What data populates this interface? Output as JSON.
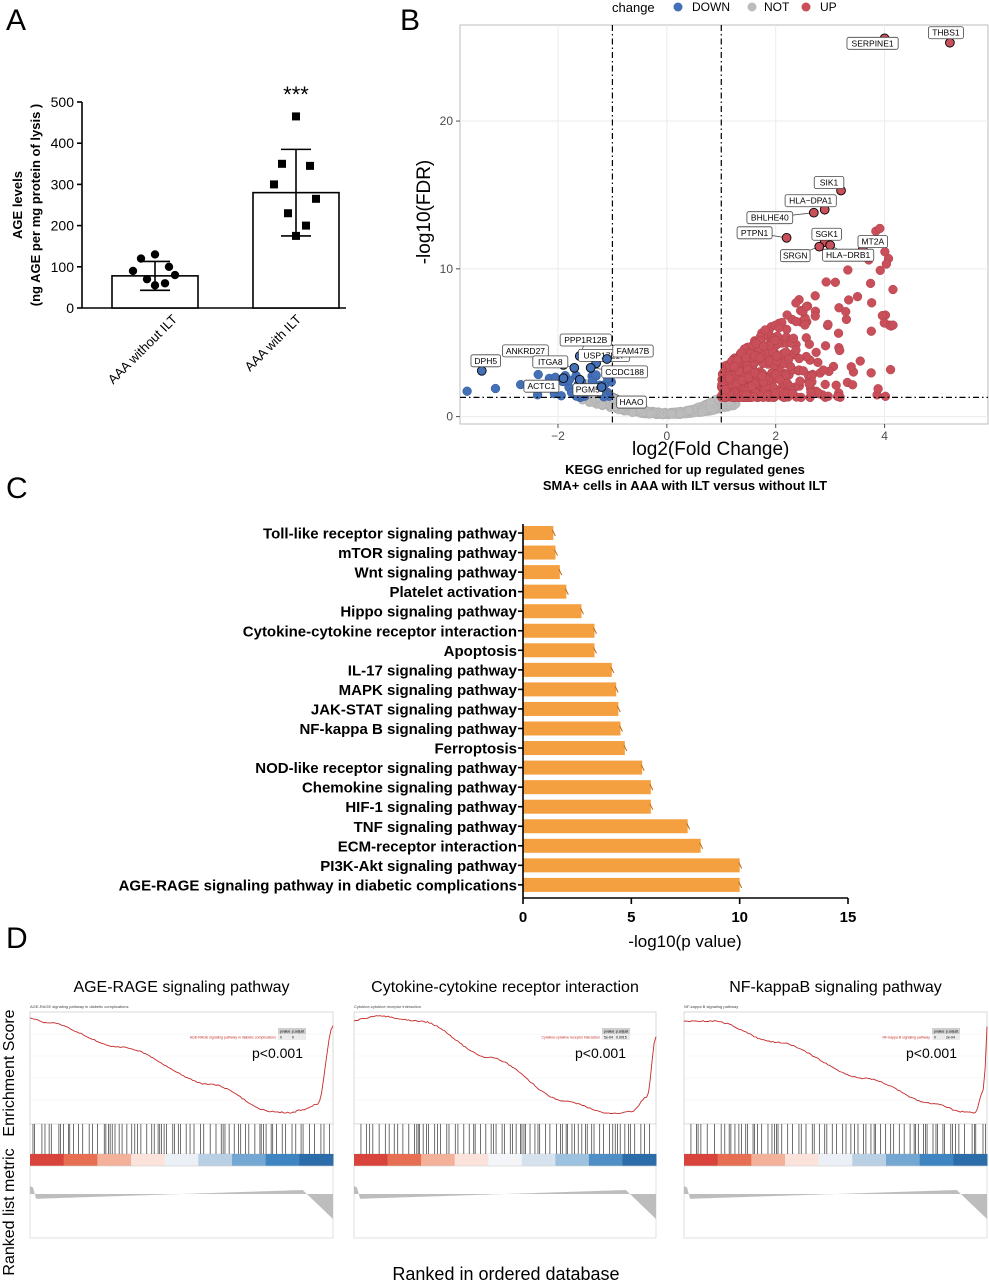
{
  "panels": {
    "a": {
      "letter": "A"
    },
    "b": {
      "letter": "B"
    },
    "c": {
      "letter": "C"
    },
    "d": {
      "letter": "D"
    }
  },
  "chart_data": [
    {
      "id": "A",
      "type": "bar",
      "title": "",
      "ylabel_line1": "AGE levels",
      "ylabel_line2": "(ng AGE per mg protein of lysis )",
      "ylim": [
        0,
        500
      ],
      "yticks": [
        0,
        100,
        200,
        300,
        400,
        500
      ],
      "categories": [
        "AAA without ILT",
        "AAA with ILT"
      ],
      "values": [
        78,
        280
      ],
      "error": [
        35,
        105
      ],
      "points": [
        [
          130,
          120,
          100,
          90,
          80,
          70,
          60,
          55
        ],
        [
          465,
          350,
          345,
          300,
          265,
          230,
          200,
          175
        ]
      ],
      "significance": "***"
    },
    {
      "id": "B",
      "type": "scatter",
      "xlabel": "log2(Fold Change)",
      "ylabel": "-log10(FDR)",
      "xlim": [
        -3.8,
        5.9
      ],
      "ylim": [
        -0.5,
        26.5
      ],
      "xticks": [
        -2,
        0,
        2,
        4
      ],
      "yticks": [
        0,
        10,
        20
      ],
      "vlines": [
        -1,
        1
      ],
      "hline": 1.3,
      "grid": true,
      "legend": {
        "title": "change",
        "position": "top",
        "entries": [
          {
            "name": "DOWN",
            "color": "#4470b8"
          },
          {
            "name": "NOT",
            "color": "#bcbcbc"
          },
          {
            "name": "UP",
            "color": "#c9505a"
          }
        ]
      },
      "labeled_points": [
        {
          "label": "THBS1",
          "x": 5.2,
          "y": 25.3,
          "group": "UP"
        },
        {
          "label": "SERPINE1",
          "x": 4.0,
          "y": 25.6,
          "group": "UP"
        },
        {
          "label": "SIK1",
          "x": 3.2,
          "y": 15.3,
          "group": "UP"
        },
        {
          "label": "HLA−DPA1",
          "x": 2.9,
          "y": 14.0,
          "group": "UP"
        },
        {
          "label": "BHLHE40",
          "x": 2.7,
          "y": 13.8,
          "group": "UP"
        },
        {
          "label": "PTPN1",
          "x": 2.2,
          "y": 12.1,
          "group": "UP"
        },
        {
          "label": "SGK1",
          "x": 2.9,
          "y": 11.8,
          "group": "UP"
        },
        {
          "label": "SRGN",
          "x": 2.8,
          "y": 11.5,
          "group": "UP"
        },
        {
          "label": "MT2A",
          "x": 3.6,
          "y": 11.3,
          "group": "UP"
        },
        {
          "label": "HLA−DRB1",
          "x": 3.0,
          "y": 11.6,
          "group": "UP"
        },
        {
          "label": "DPH5",
          "x": -3.4,
          "y": 3.1,
          "group": "DOWN"
        },
        {
          "label": "ANKRD27",
          "x": -1.9,
          "y": 3.5,
          "group": "DOWN"
        },
        {
          "label": "PPP1R12B",
          "x": -1.6,
          "y": 4.1,
          "group": "DOWN"
        },
        {
          "label": "ITGA8",
          "x": -1.7,
          "y": 3.3,
          "group": "DOWN"
        },
        {
          "label": "USP17L17",
          "x": -1.3,
          "y": 3.6,
          "group": "DOWN"
        },
        {
          "label": "FAM47B",
          "x": -1.1,
          "y": 3.9,
          "group": "DOWN"
        },
        {
          "label": "CCDC188",
          "x": -1.4,
          "y": 3.3,
          "group": "DOWN"
        },
        {
          "label": "ACTC1",
          "x": -1.9,
          "y": 2.6,
          "group": "DOWN"
        },
        {
          "label": "PGM5",
          "x": -1.6,
          "y": 2.5,
          "group": "DOWN"
        },
        {
          "label": "HAAO",
          "x": -1.2,
          "y": 2.0,
          "group": "DOWN"
        }
      ]
    },
    {
      "id": "C",
      "type": "bar",
      "orientation": "horizontal",
      "title_line1": "KEGG enriched for up regulated genes",
      "title_line2": "SMA+ cells in AAA with ILT versus without ILT",
      "xlabel": "-log10(p value)",
      "xlim": [
        0,
        15
      ],
      "xticks": [
        0,
        5,
        10,
        15
      ],
      "bar_color": "#f4a041",
      "categories": [
        "Toll-like receptor signaling pathway",
        "mTOR signaling pathway",
        "Wnt signaling pathway",
        "Platelet activation",
        "Hippo signaling pathway",
        "Cytokine-cytokine receptor interaction",
        "Apoptosis",
        "IL-17 signaling pathway",
        "MAPK signaling pathway",
        "JAK-STAT signaling pathway",
        "NF-kappa B signaling pathway",
        "Ferroptosis",
        "NOD-like receptor signaling pathway",
        "Chemokine signaling pathway",
        "HIF-1 signaling pathway",
        "TNF signaling pathway",
        "ECM-receptor interaction",
        "PI3K-Akt signaling pathway",
        "AGE-RAGE signaling pathway in diabetic complications"
      ],
      "values": [
        1.4,
        1.5,
        1.7,
        2.0,
        2.7,
        3.3,
        3.3,
        4.1,
        4.3,
        4.4,
        4.5,
        4.7,
        5.5,
        5.9,
        5.9,
        7.6,
        8.2,
        10.0,
        10.0
      ]
    },
    {
      "id": "D",
      "type": "line",
      "ylabel_top": "Enrichment Score",
      "ylabel_bottom": "Ranked list metric",
      "xlabel": "Ranked in ordered database",
      "plots": [
        {
          "title": "AGE-RAGE signaling pathway",
          "inner_title": "AGE-RAGE signaling pathway in diabetic complications",
          "pvalue": "p<0.001",
          "table_head": [
            "pvalue",
            "p.adjust"
          ],
          "table_row_name": "AGE-RAGE signaling pathway in diabetic complications",
          "table_row": [
            "0",
            "0"
          ]
        },
        {
          "title": "Cytokine-cytokine receptor interaction",
          "inner_title": "Cytokine-cytokine receptor interaction",
          "pvalue": "p<0.001",
          "table_head": [
            "pvalue",
            "p.adjust"
          ],
          "table_row_name": "Cytokine-cytokine receptor interaction",
          "table_row": [
            "5e-04",
            "0.0015"
          ]
        },
        {
          "title": "NF-kappaB signaling pathway",
          "inner_title": "NF-kappa B signaling pathway",
          "pvalue": "p<0.001",
          "table_head": [
            "pvalue",
            "p.adjust"
          ],
          "table_row_name": "NF-kappa B signaling pathway",
          "table_row": [
            "0",
            "2e-04"
          ]
        }
      ]
    }
  ]
}
